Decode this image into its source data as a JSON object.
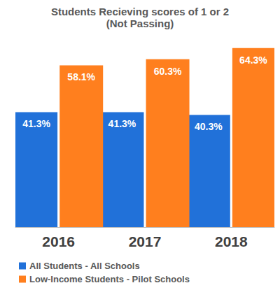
{
  "chart_data": {
    "type": "bar",
    "title": "Students Recieving scores of 1 or 2",
    "subtitle": "(Not Passing)",
    "categories": [
      "2016",
      "2017",
      "2018"
    ],
    "series": [
      {
        "name": "All Students - All Schools",
        "color": "#2171d9",
        "values": [
          41.3,
          41.3,
          40.3
        ],
        "value_labels": [
          "41.3%",
          "41.3%",
          "40.3%"
        ]
      },
      {
        "name": "Low-Income Students - Pilot Schools",
        "color": "#ff7f1e",
        "values": [
          58.1,
          60.3,
          64.3
        ],
        "value_labels": [
          "58.1%",
          "60.3%",
          "64.3%"
        ]
      }
    ],
    "ylim": [
      0,
      66
    ],
    "data_labels": true,
    "legend": "bottom",
    "grid": false,
    "tick_labels": "x"
  }
}
